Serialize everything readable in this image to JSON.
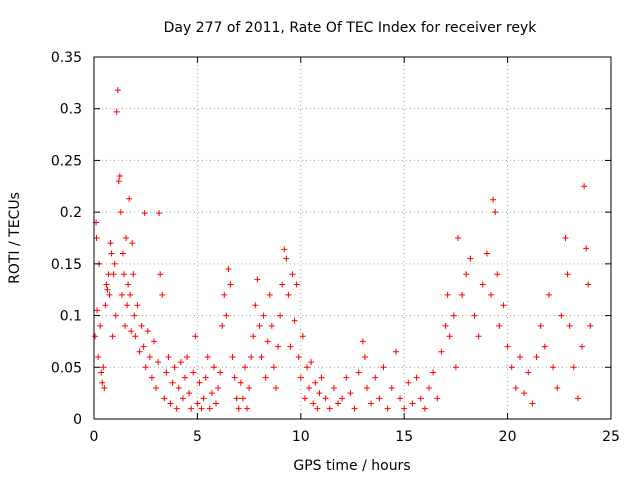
{
  "chart_data": {
    "type": "scatter",
    "title": "Day 277 of 2011, Rate Of TEC Index for receiver reyk",
    "xlabel": "GPS time / hours",
    "ylabel": "ROTI / TECUs",
    "xlim": [
      0,
      25
    ],
    "ylim": [
      0,
      0.35
    ],
    "xticks": [
      0,
      5,
      10,
      15,
      20,
      25
    ],
    "xtick_labels": [
      "0",
      "5",
      "10",
      "15",
      "20",
      "25"
    ],
    "yticks": [
      0,
      0.05,
      0.1,
      0.15,
      0.2,
      0.25,
      0.3,
      0.35
    ],
    "ytick_labels": [
      "0",
      "0.05",
      "0.1",
      "0.15",
      "0.2",
      "0.25",
      "0.3",
      "0.35"
    ],
    "grid": true,
    "marker": "+",
    "color": "#ff0000",
    "series": [
      {
        "name": "ROTI",
        "points": [
          [
            0.05,
            0.08
          ],
          [
            0.1,
            0.19
          ],
          [
            0.12,
            0.175
          ],
          [
            0.15,
            0.105
          ],
          [
            0.2,
            0.06
          ],
          [
            0.25,
            0.15
          ],
          [
            0.3,
            0.09
          ],
          [
            0.35,
            0.045
          ],
          [
            0.4,
            0.035
          ],
          [
            0.45,
            0.05
          ],
          [
            0.5,
            0.03
          ],
          [
            0.55,
            0.11
          ],
          [
            0.6,
            0.13
          ],
          [
            0.65,
            0.125
          ],
          [
            0.7,
            0.14
          ],
          [
            0.75,
            0.12
          ],
          [
            0.8,
            0.17
          ],
          [
            0.85,
            0.16
          ],
          [
            0.9,
            0.08
          ],
          [
            0.95,
            0.14
          ],
          [
            1.0,
            0.15
          ],
          [
            1.05,
            0.1
          ],
          [
            1.1,
            0.297
          ],
          [
            1.15,
            0.318
          ],
          [
            1.2,
            0.23
          ],
          [
            1.25,
            0.235
          ],
          [
            1.3,
            0.2
          ],
          [
            1.35,
            0.12
          ],
          [
            1.4,
            0.16
          ],
          [
            1.45,
            0.14
          ],
          [
            1.5,
            0.09
          ],
          [
            1.55,
            0.175
          ],
          [
            1.6,
            0.11
          ],
          [
            1.65,
            0.13
          ],
          [
            1.7,
            0.213
          ],
          [
            1.75,
            0.12
          ],
          [
            1.8,
            0.085
          ],
          [
            1.85,
            0.17
          ],
          [
            1.9,
            0.14
          ],
          [
            1.95,
            0.1
          ],
          [
            2.0,
            0.08
          ],
          [
            2.1,
            0.11
          ],
          [
            2.2,
            0.065
          ],
          [
            2.3,
            0.09
          ],
          [
            2.4,
            0.07
          ],
          [
            2.45,
            0.199
          ],
          [
            2.5,
            0.05
          ],
          [
            2.6,
            0.085
          ],
          [
            2.7,
            0.06
          ],
          [
            2.8,
            0.04
          ],
          [
            2.9,
            0.075
          ],
          [
            3.0,
            0.03
          ],
          [
            3.1,
            0.055
          ],
          [
            3.15,
            0.199
          ],
          [
            3.2,
            0.14
          ],
          [
            3.3,
            0.12
          ],
          [
            3.4,
            0.02
          ],
          [
            3.5,
            0.045
          ],
          [
            3.6,
            0.06
          ],
          [
            3.7,
            0.015
          ],
          [
            3.8,
            0.035
          ],
          [
            3.9,
            0.05
          ],
          [
            4.0,
            0.01
          ],
          [
            4.1,
            0.03
          ],
          [
            4.2,
            0.055
          ],
          [
            4.3,
            0.02
          ],
          [
            4.4,
            0.04
          ],
          [
            4.5,
            0.06
          ],
          [
            4.6,
            0.025
          ],
          [
            4.7,
            0.01
          ],
          [
            4.8,
            0.045
          ],
          [
            4.9,
            0.08
          ],
          [
            5.0,
            0.015
          ],
          [
            5.1,
            0.035
          ],
          [
            5.2,
            0.01
          ],
          [
            5.3,
            0.02
          ],
          [
            5.4,
            0.04
          ],
          [
            5.5,
            0.06
          ],
          [
            5.6,
            0.01
          ],
          [
            5.7,
            0.025
          ],
          [
            5.8,
            0.05
          ],
          [
            5.9,
            0.015
          ],
          [
            6.0,
            0.03
          ],
          [
            6.1,
            0.045
          ],
          [
            6.2,
            0.09
          ],
          [
            6.3,
            0.12
          ],
          [
            6.4,
            0.1
          ],
          [
            6.5,
            0.145
          ],
          [
            6.6,
            0.13
          ],
          [
            6.7,
            0.06
          ],
          [
            6.8,
            0.04
          ],
          [
            6.9,
            0.02
          ],
          [
            7.0,
            0.01
          ],
          [
            7.1,
            0.035
          ],
          [
            7.2,
            0.02
          ],
          [
            7.3,
            0.05
          ],
          [
            7.4,
            0.01
          ],
          [
            7.5,
            0.03
          ],
          [
            7.6,
            0.06
          ],
          [
            7.7,
            0.08
          ],
          [
            7.8,
            0.11
          ],
          [
            7.9,
            0.135
          ],
          [
            8.0,
            0.09
          ],
          [
            8.1,
            0.06
          ],
          [
            8.2,
            0.1
          ],
          [
            8.3,
            0.04
          ],
          [
            8.4,
            0.075
          ],
          [
            8.5,
            0.12
          ],
          [
            8.6,
            0.09
          ],
          [
            8.7,
            0.05
          ],
          [
            8.8,
            0.03
          ],
          [
            8.9,
            0.07
          ],
          [
            9.0,
            0.1
          ],
          [
            9.1,
            0.13
          ],
          [
            9.2,
            0.164
          ],
          [
            9.3,
            0.155
          ],
          [
            9.4,
            0.12
          ],
          [
            9.5,
            0.07
          ],
          [
            9.6,
            0.14
          ],
          [
            9.7,
            0.095
          ],
          [
            9.8,
            0.13
          ],
          [
            9.9,
            0.06
          ],
          [
            10.0,
            0.04
          ],
          [
            10.1,
            0.08
          ],
          [
            10.2,
            0.02
          ],
          [
            10.3,
            0.05
          ],
          [
            10.4,
            0.03
          ],
          [
            10.5,
            0.055
          ],
          [
            10.6,
            0.015
          ],
          [
            10.7,
            0.035
          ],
          [
            10.8,
            0.01
          ],
          [
            10.9,
            0.025
          ],
          [
            11.0,
            0.04
          ],
          [
            11.2,
            0.02
          ],
          [
            11.4,
            0.01
          ],
          [
            11.6,
            0.03
          ],
          [
            11.8,
            0.015
          ],
          [
            12.0,
            0.02
          ],
          [
            12.2,
            0.04
          ],
          [
            12.4,
            0.025
          ],
          [
            12.6,
            0.01
          ],
          [
            12.8,
            0.045
          ],
          [
            13.0,
            0.075
          ],
          [
            13.1,
            0.06
          ],
          [
            13.2,
            0.03
          ],
          [
            13.4,
            0.015
          ],
          [
            13.6,
            0.04
          ],
          [
            13.8,
            0.02
          ],
          [
            14.0,
            0.05
          ],
          [
            14.2,
            0.01
          ],
          [
            14.4,
            0.03
          ],
          [
            14.6,
            0.065
          ],
          [
            14.8,
            0.02
          ],
          [
            15.0,
            0.01
          ],
          [
            15.2,
            0.035
          ],
          [
            15.4,
            0.015
          ],
          [
            15.6,
            0.04
          ],
          [
            15.8,
            0.02
          ],
          [
            16.0,
            0.01
          ],
          [
            16.2,
            0.03
          ],
          [
            16.4,
            0.045
          ],
          [
            16.6,
            0.02
          ],
          [
            16.8,
            0.065
          ],
          [
            17.0,
            0.09
          ],
          [
            17.1,
            0.12
          ],
          [
            17.2,
            0.08
          ],
          [
            17.4,
            0.1
          ],
          [
            17.5,
            0.05
          ],
          [
            17.6,
            0.175
          ],
          [
            17.8,
            0.12
          ],
          [
            18.0,
            0.14
          ],
          [
            18.2,
            0.155
          ],
          [
            18.4,
            0.1
          ],
          [
            18.6,
            0.08
          ],
          [
            18.8,
            0.13
          ],
          [
            19.0,
            0.16
          ],
          [
            19.2,
            0.12
          ],
          [
            19.3,
            0.212
          ],
          [
            19.4,
            0.2
          ],
          [
            19.5,
            0.14
          ],
          [
            19.6,
            0.09
          ],
          [
            19.8,
            0.11
          ],
          [
            20.0,
            0.07
          ],
          [
            20.2,
            0.05
          ],
          [
            20.4,
            0.03
          ],
          [
            20.6,
            0.06
          ],
          [
            20.8,
            0.025
          ],
          [
            21.0,
            0.045
          ],
          [
            21.2,
            0.015
          ],
          [
            21.4,
            0.06
          ],
          [
            21.6,
            0.09
          ],
          [
            21.8,
            0.07
          ],
          [
            22.0,
            0.12
          ],
          [
            22.2,
            0.05
          ],
          [
            22.4,
            0.03
          ],
          [
            22.6,
            0.1
          ],
          [
            22.8,
            0.175
          ],
          [
            22.9,
            0.14
          ],
          [
            23.0,
            0.09
          ],
          [
            23.2,
            0.05
          ],
          [
            23.4,
            0.02
          ],
          [
            23.6,
            0.07
          ],
          [
            23.7,
            0.225
          ],
          [
            23.8,
            0.165
          ],
          [
            23.9,
            0.13
          ],
          [
            24.0,
            0.09
          ]
        ]
      }
    ]
  }
}
